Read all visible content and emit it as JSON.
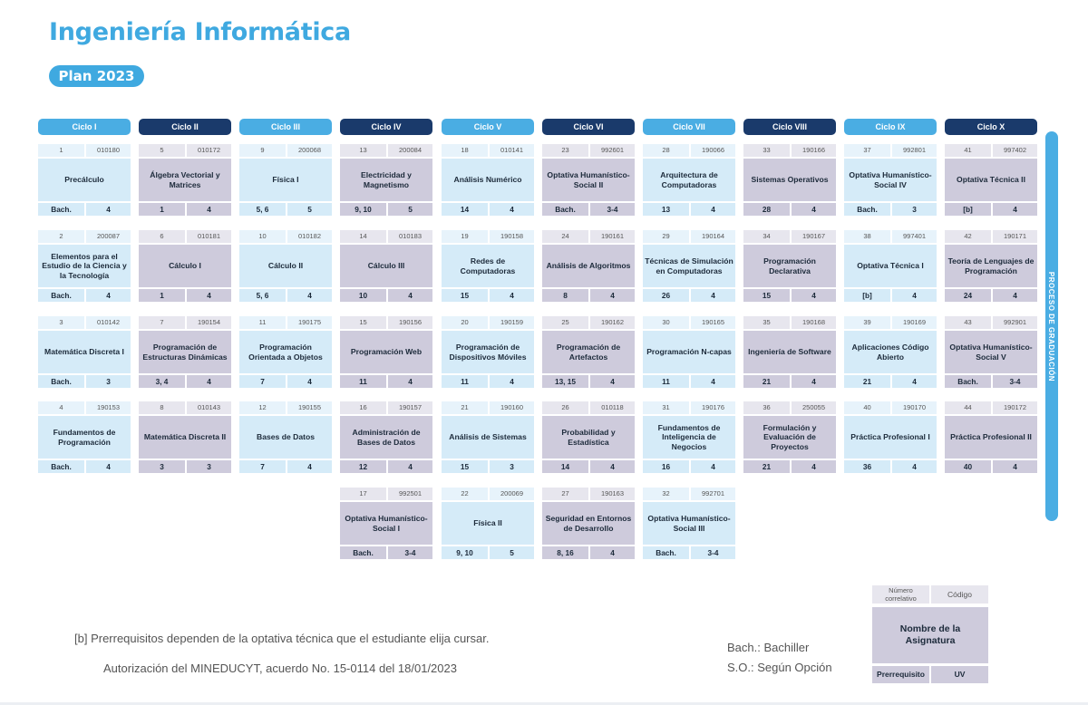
{
  "header": {
    "title": "Ingeniería Informática",
    "plan": "Plan 2023"
  },
  "colors": {
    "accent": "#3fa9e0",
    "cycle_dark": "#1a3a6b",
    "course_blue": "#d5ebf8",
    "course_purple": "#cecbdc"
  },
  "cycles": [
    {
      "label": "Ciclo I",
      "style": "light"
    },
    {
      "label": "Ciclo II",
      "style": "dark"
    },
    {
      "label": "Ciclo III",
      "style": "light"
    },
    {
      "label": "Ciclo IV",
      "style": "dark"
    },
    {
      "label": "Ciclo V",
      "style": "light"
    },
    {
      "label": "Ciclo VI",
      "style": "dark"
    },
    {
      "label": "Ciclo VII",
      "style": "light"
    },
    {
      "label": "Ciclo VIII",
      "style": "dark"
    },
    {
      "label": "Ciclo IX",
      "style": "light"
    },
    {
      "label": "Ciclo X",
      "style": "dark"
    }
  ],
  "courses": [
    {
      "cycle": 0,
      "row": 0,
      "number": "1",
      "code": "010180",
      "name": "Precálculo",
      "prereq": "Bach.",
      "uv": "4"
    },
    {
      "cycle": 0,
      "row": 1,
      "number": "2",
      "code": "200087",
      "name": "Elementos para el Estudio de la Ciencia y la Tecnología",
      "prereq": "Bach.",
      "uv": "4"
    },
    {
      "cycle": 0,
      "row": 2,
      "number": "3",
      "code": "010142",
      "name": "Matemática Discreta I",
      "prereq": "Bach.",
      "uv": "3"
    },
    {
      "cycle": 0,
      "row": 3,
      "number": "4",
      "code": "190153",
      "name": "Fundamentos de Programación",
      "prereq": "Bach.",
      "uv": "4"
    },
    {
      "cycle": 1,
      "row": 0,
      "number": "5",
      "code": "010172",
      "name": "Álgebra Vectorial y Matrices",
      "prereq": "1",
      "uv": "4"
    },
    {
      "cycle": 1,
      "row": 1,
      "number": "6",
      "code": "010181",
      "name": "Cálculo I",
      "prereq": "1",
      "uv": "4"
    },
    {
      "cycle": 1,
      "row": 2,
      "number": "7",
      "code": "190154",
      "name": "Programación de Estructuras Dinámicas",
      "prereq": "3, 4",
      "uv": "4"
    },
    {
      "cycle": 1,
      "row": 3,
      "number": "8",
      "code": "010143",
      "name": "Matemática Discreta II",
      "prereq": "3",
      "uv": "3"
    },
    {
      "cycle": 2,
      "row": 0,
      "number": "9",
      "code": "200068",
      "name": "Física I",
      "prereq": "5, 6",
      "uv": "5"
    },
    {
      "cycle": 2,
      "row": 1,
      "number": "10",
      "code": "010182",
      "name": "Cálculo II",
      "prereq": "5, 6",
      "uv": "4"
    },
    {
      "cycle": 2,
      "row": 2,
      "number": "11",
      "code": "190175",
      "name": "Programación Orientada a Objetos",
      "prereq": "7",
      "uv": "4"
    },
    {
      "cycle": 2,
      "row": 3,
      "number": "12",
      "code": "190155",
      "name": "Bases de Datos",
      "prereq": "7",
      "uv": "4"
    },
    {
      "cycle": 3,
      "row": 0,
      "number": "13",
      "code": "200084",
      "name": "Electricidad y Magnetismo",
      "prereq": "9, 10",
      "uv": "5"
    },
    {
      "cycle": 3,
      "row": 1,
      "number": "14",
      "code": "010183",
      "name": "Cálculo III",
      "prereq": "10",
      "uv": "4"
    },
    {
      "cycle": 3,
      "row": 2,
      "number": "15",
      "code": "190156",
      "name": "Programación Web",
      "prereq": "11",
      "uv": "4"
    },
    {
      "cycle": 3,
      "row": 3,
      "number": "16",
      "code": "190157",
      "name": "Administración de Bases de Datos",
      "prereq": "12",
      "uv": "4"
    },
    {
      "cycle": 3,
      "row": 4,
      "number": "17",
      "code": "992501",
      "name": "Optativa Humanístico-Social I",
      "prereq": "Bach.",
      "uv": "3-4"
    },
    {
      "cycle": 4,
      "row": 0,
      "number": "18",
      "code": "010141",
      "name": "Análisis Numérico",
      "prereq": "14",
      "uv": "4"
    },
    {
      "cycle": 4,
      "row": 1,
      "number": "19",
      "code": "190158",
      "name": "Redes de Computadoras",
      "prereq": "15",
      "uv": "4"
    },
    {
      "cycle": 4,
      "row": 2,
      "number": "20",
      "code": "190159",
      "name": "Programación de Dispositivos Móviles",
      "prereq": "11",
      "uv": "4"
    },
    {
      "cycle": 4,
      "row": 3,
      "number": "21",
      "code": "190160",
      "name": "Análisis de Sistemas",
      "prereq": "15",
      "uv": "3"
    },
    {
      "cycle": 4,
      "row": 4,
      "number": "22",
      "code": "200069",
      "name": "Física II",
      "prereq": "9, 10",
      "uv": "5"
    },
    {
      "cycle": 5,
      "row": 0,
      "number": "23",
      "code": "992601",
      "name": "Optativa Humanístico- Social II",
      "prereq": "Bach.",
      "uv": "3-4"
    },
    {
      "cycle": 5,
      "row": 1,
      "number": "24",
      "code": "190161",
      "name": "Análisis de Algoritmos",
      "prereq": "8",
      "uv": "4"
    },
    {
      "cycle": 5,
      "row": 2,
      "number": "25",
      "code": "190162",
      "name": "Programación de Artefactos",
      "prereq": "13, 15",
      "uv": "4"
    },
    {
      "cycle": 5,
      "row": 3,
      "number": "26",
      "code": "010118",
      "name": "Probabilidad y Estadística",
      "prereq": "14",
      "uv": "4"
    },
    {
      "cycle": 5,
      "row": 4,
      "number": "27",
      "code": "190163",
      "name": "Seguridad en Entornos de Desarrollo",
      "prereq": "8, 16",
      "uv": "4"
    },
    {
      "cycle": 6,
      "row": 0,
      "number": "28",
      "code": "190066",
      "name": "Arquitectura de Computadoras",
      "prereq": "13",
      "uv": "4"
    },
    {
      "cycle": 6,
      "row": 1,
      "number": "29",
      "code": "190164",
      "name": "Técnicas de Simulación en Computadoras",
      "prereq": "26",
      "uv": "4"
    },
    {
      "cycle": 6,
      "row": 2,
      "number": "30",
      "code": "190165",
      "name": "Programación N-capas",
      "prereq": "11",
      "uv": "4"
    },
    {
      "cycle": 6,
      "row": 3,
      "number": "31",
      "code": "190176",
      "name": "Fundamentos de Inteligencia de Negocios",
      "prereq": "16",
      "uv": "4"
    },
    {
      "cycle": 6,
      "row": 4,
      "number": "32",
      "code": "992701",
      "name": "Optativa Humanístico-Social III",
      "prereq": "Bach.",
      "uv": "3-4"
    },
    {
      "cycle": 7,
      "row": 0,
      "number": "33",
      "code": "190166",
      "name": "Sistemas Operativos",
      "prereq": "28",
      "uv": "4"
    },
    {
      "cycle": 7,
      "row": 1,
      "number": "34",
      "code": "190167",
      "name": "Programación Declarativa",
      "prereq": "15",
      "uv": "4"
    },
    {
      "cycle": 7,
      "row": 2,
      "number": "35",
      "code": "190168",
      "name": "Ingeniería de Software",
      "prereq": "21",
      "uv": "4"
    },
    {
      "cycle": 7,
      "row": 3,
      "number": "36",
      "code": "250055",
      "name": "Formulación y Evaluación de Proyectos",
      "prereq": "21",
      "uv": "4"
    },
    {
      "cycle": 8,
      "row": 0,
      "number": "37",
      "code": "992801",
      "name": "Optativa Humanístico-Social IV",
      "prereq": "Bach.",
      "uv": "3"
    },
    {
      "cycle": 8,
      "row": 1,
      "number": "38",
      "code": "997401",
      "name": "Optativa Técnica I",
      "prereq": "[b]",
      "uv": "4"
    },
    {
      "cycle": 8,
      "row": 2,
      "number": "39",
      "code": "190169",
      "name": "Aplicaciones Código Abierto",
      "prereq": "21",
      "uv": "4"
    },
    {
      "cycle": 8,
      "row": 3,
      "number": "40",
      "code": "190170",
      "name": "Práctica Profesional I",
      "prereq": "36",
      "uv": "4"
    },
    {
      "cycle": 9,
      "row": 0,
      "number": "41",
      "code": "997402",
      "name": "Optativa Técnica II",
      "prereq": "[b]",
      "uv": "4"
    },
    {
      "cycle": 9,
      "row": 1,
      "number": "42",
      "code": "190171",
      "name": "Teoría de Lenguajes de Programación",
      "prereq": "24",
      "uv": "4"
    },
    {
      "cycle": 9,
      "row": 2,
      "number": "43",
      "code": "992901",
      "name": "Optativa Humanístico-Social V",
      "prereq": "Bach.",
      "uv": "3-4"
    },
    {
      "cycle": 9,
      "row": 3,
      "number": "44",
      "code": "190172",
      "name": "Práctica Profesional II",
      "prereq": "40",
      "uv": "4"
    }
  ],
  "graduation_label": "PROCESO DE GRADUACIÓN",
  "footnote": "[b] Prerrequisitos dependen de la optativa técnica que el estudiante elija cursar.",
  "authorization": "Autorización del MINEDUCYT, acuerdo No. 15-0114 del 18/01/2023",
  "abbreviations": [
    "Bach.: Bachiller",
    "S.O.: Según Opción"
  ],
  "legend": {
    "number": "Número correlativo",
    "code": "Código",
    "name": "Nombre de la Asignatura",
    "prereq": "Prerrequisito",
    "uv": "UV"
  }
}
